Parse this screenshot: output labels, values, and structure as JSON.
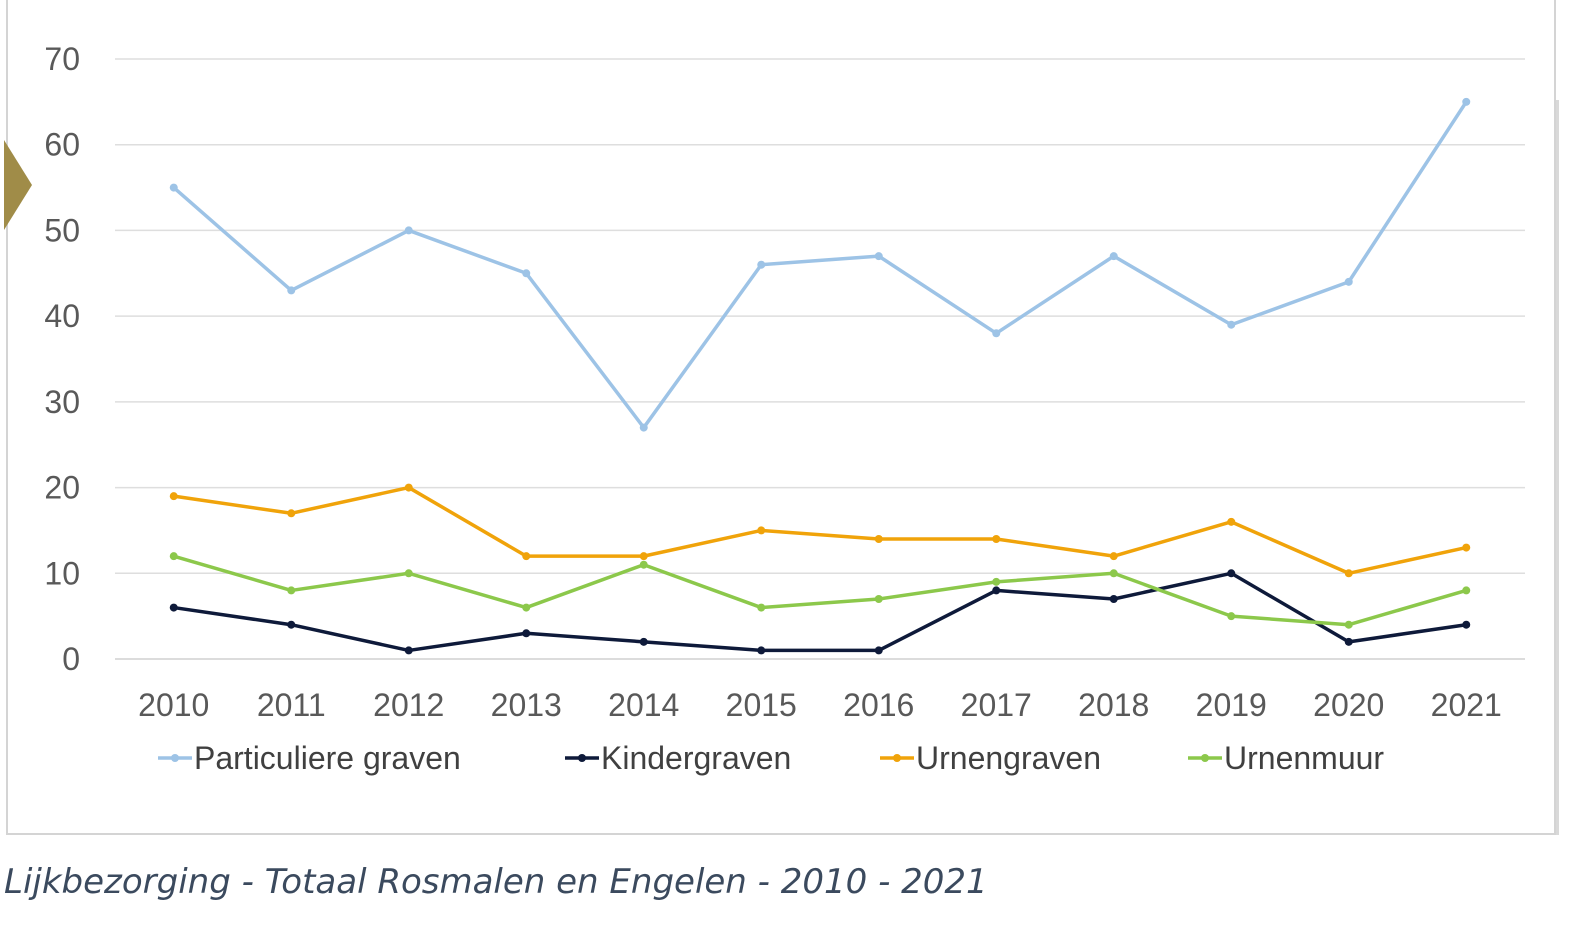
{
  "chart_data": {
    "type": "line",
    "categories": [
      "2010",
      "2011",
      "2012",
      "2013",
      "2014",
      "2015",
      "2016",
      "2017",
      "2018",
      "2019",
      "2020",
      "2021"
    ],
    "ylim": [
      0,
      70
    ],
    "yticks": [
      "0",
      "10",
      "20",
      "30",
      "40",
      "50",
      "60",
      "70"
    ],
    "grid": true,
    "legend_position": "bottom",
    "series": [
      {
        "name": "Particuliere graven",
        "color": "#9dc3e6",
        "values": [
          55,
          43,
          50,
          45,
          27,
          46,
          47,
          38,
          47,
          39,
          44,
          65
        ]
      },
      {
        "name": "Kindergraven",
        "color": "#0e1a3a",
        "values": [
          6,
          4,
          1,
          3,
          2,
          1,
          1,
          8,
          7,
          10,
          2,
          4
        ]
      },
      {
        "name": "Urnengraven",
        "color": "#f0a30a",
        "values": [
          19,
          17,
          20,
          12,
          12,
          15,
          14,
          14,
          12,
          16,
          10,
          13
        ]
      },
      {
        "name": "Urnenmuur",
        "color": "#8cc84b",
        "values": [
          12,
          8,
          10,
          6,
          11,
          6,
          7,
          9,
          10,
          5,
          4,
          8
        ]
      }
    ]
  },
  "caption": "Lijkbezorging - Totaal Rosmalen en Engelen - 2010 - 2021",
  "marker_icon": "chevron-marker-icon"
}
